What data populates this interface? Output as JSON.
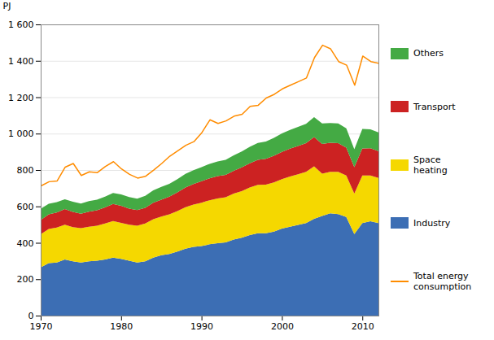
{
  "chart_data": {
    "type": "area",
    "stacked": true,
    "ylabel": "PJ",
    "x": [
      1970,
      1971,
      1972,
      1973,
      1974,
      1975,
      1976,
      1977,
      1978,
      1979,
      1980,
      1981,
      1982,
      1983,
      1984,
      1985,
      1986,
      1987,
      1988,
      1989,
      1990,
      1991,
      1992,
      1993,
      1994,
      1995,
      1996,
      1997,
      1998,
      1999,
      2000,
      2001,
      2002,
      2003,
      2004,
      2005,
      2006,
      2007,
      2008,
      2009,
      2010,
      2011,
      2012
    ],
    "series": [
      {
        "name": "Industry",
        "color": "#3c6eb4",
        "values": [
          265,
          288,
          292,
          308,
          298,
          292,
          298,
          302,
          308,
          318,
          312,
          302,
          292,
          298,
          318,
          332,
          338,
          352,
          368,
          378,
          382,
          392,
          398,
          402,
          418,
          428,
          442,
          452,
          452,
          462,
          478,
          488,
          498,
          508,
          532,
          548,
          562,
          558,
          542,
          448,
          508,
          518,
          508
        ]
      },
      {
        "name": "Space\nheating",
        "color": "#f5d800",
        "values": [
          182,
          188,
          192,
          192,
          188,
          188,
          190,
          192,
          198,
          202,
          198,
          198,
          202,
          208,
          212,
          212,
          218,
          222,
          228,
          232,
          238,
          242,
          246,
          248,
          252,
          256,
          262,
          266,
          268,
          270,
          272,
          276,
          278,
          282,
          288,
          232,
          228,
          232,
          228,
          222,
          262,
          252,
          248
        ]
      },
      {
        "name": "Transport",
        "color": "#cc2222",
        "values": [
          78,
          80,
          83,
          86,
          84,
          80,
          83,
          85,
          88,
          93,
          93,
          88,
          86,
          86,
          90,
          93,
          98,
          103,
          108,
          113,
          118,
          120,
          122,
          123,
          126,
          130,
          133,
          138,
          141,
          146,
          150,
          153,
          156,
          158,
          161,
          163,
          160,
          158,
          153,
          146,
          148,
          150,
          148
        ]
      },
      {
        "name": "Others",
        "color": "#44aa44",
        "values": [
          62,
          58,
          56,
          53,
          56,
          56,
          58,
          58,
          60,
          61,
          63,
          63,
          63,
          66,
          68,
          70,
          70,
          73,
          75,
          76,
          78,
          80,
          81,
          83,
          85,
          88,
          90,
          93,
          95,
          98,
          101,
          103,
          105,
          106,
          110,
          113,
          108,
          108,
          106,
          98,
          108,
          103,
          103
        ]
      },
      {
        "name": "Total energy\nconsumption",
        "color": "#ff8c00",
        "type": "line",
        "values": [
          715,
          738,
          742,
          818,
          838,
          772,
          792,
          788,
          822,
          848,
          808,
          778,
          758,
          768,
          802,
          838,
          878,
          908,
          938,
          958,
          1008,
          1078,
          1058,
          1072,
          1098,
          1108,
          1152,
          1158,
          1198,
          1218,
          1248,
          1268,
          1288,
          1308,
          1420,
          1488,
          1468,
          1398,
          1378,
          1268,
          1428,
          1398,
          1388
        ]
      }
    ],
    "xlim": [
      1970,
      2012
    ],
    "xticks": [
      1970,
      1980,
      1990,
      2000,
      2010
    ],
    "ylim": [
      0,
      1600
    ],
    "yticks": [
      0,
      200,
      400,
      600,
      800,
      {
        "value": 1000,
        "label": "1 000"
      },
      {
        "value": 1200,
        "label": "1 200"
      },
      {
        "value": 1400,
        "label": "1 400"
      },
      {
        "value": 1600,
        "label": "1 600"
      }
    ],
    "grid": "y",
    "legend": "right"
  }
}
